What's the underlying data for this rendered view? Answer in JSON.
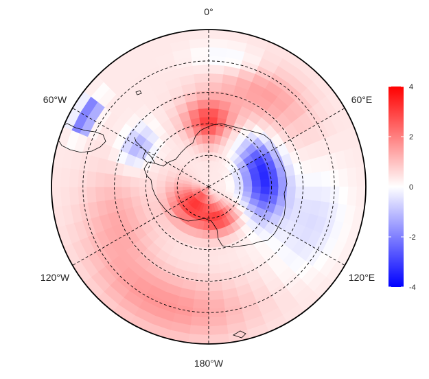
{
  "map": {
    "projection": "south-polar-stereographic",
    "longitude_labels": {
      "top": "0°",
      "upper_left": "60°W",
      "upper_right": "60°E",
      "lower_left": "120°W",
      "lower_right": "120°E",
      "bottom": "180°W"
    },
    "graticule": {
      "meridians_every_deg": 60,
      "parallel_circles": 4,
      "style": "dashed"
    },
    "coastlines": "Antarctica and southern tip of South America",
    "colors": {
      "negative": "#0000ff",
      "zero": "#ffffff",
      "positive": "#ff0000",
      "coast": "#000000"
    }
  },
  "colorbar": {
    "min": -4,
    "max": 4,
    "ticks": [
      "4",
      "2",
      "0",
      "-2",
      "-4"
    ],
    "tick_values": [
      4,
      2,
      0,
      -2,
      -4
    ]
  },
  "anomaly_field": {
    "description_features": [
      {
        "region": "Antarctic Peninsula / Drake Passage",
        "sign": "negative",
        "strength": 3.2
      },
      {
        "region": "East Antarctica (Indian Ocean sector, 90°E)",
        "sign": "negative",
        "strength": 3.0
      },
      {
        "region": "West Antarctica interior",
        "sign": "positive",
        "strength": 2.8
      },
      {
        "region": "Weddell Sea / Queen Maud Land coast",
        "sign": "positive",
        "strength": 2.5
      },
      {
        "region": "Ross Sea / Victoria Land",
        "sign": "positive",
        "strength": 1.8
      },
      {
        "region": "Southern Ocean, Pacific sector",
        "sign": "positive",
        "strength": 1.0
      }
    ]
  }
}
